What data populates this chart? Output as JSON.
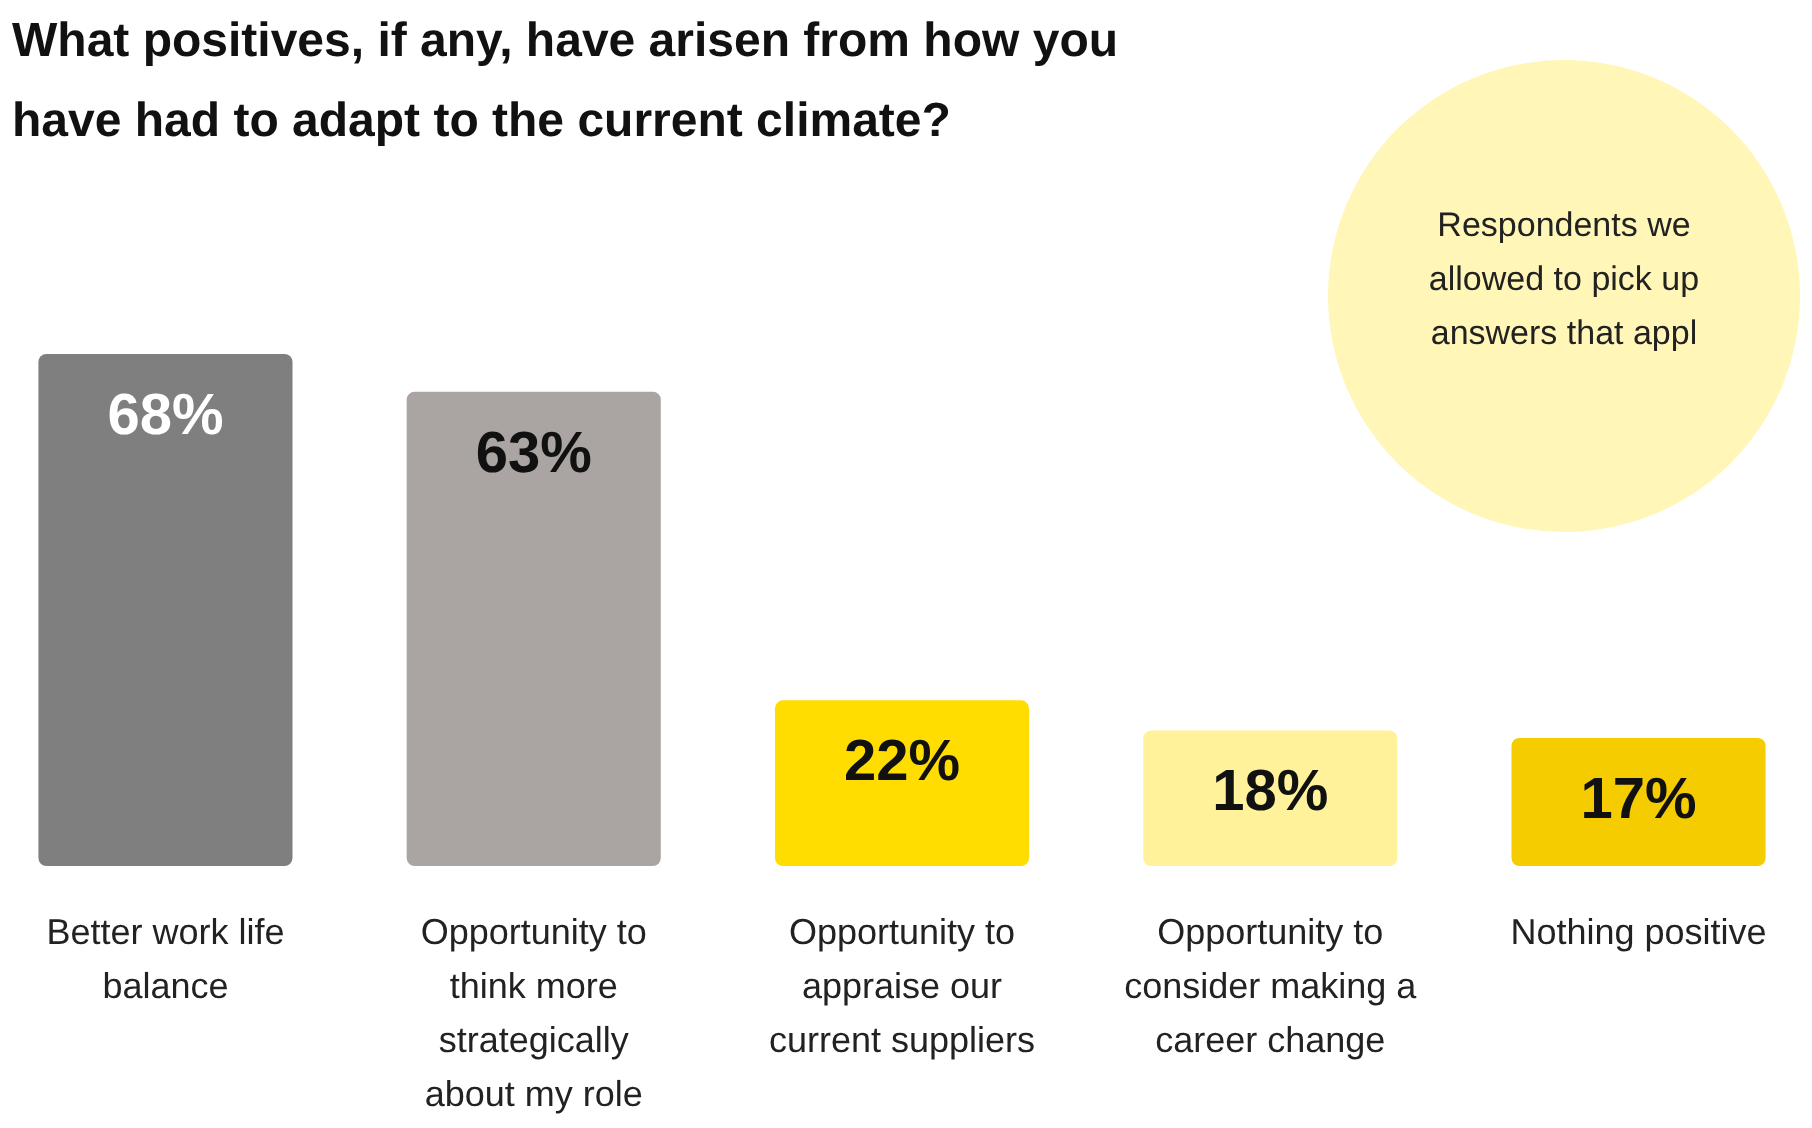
{
  "chart_data": {
    "type": "bar",
    "title": "What positives, if any, have arisen from how you have had to adapt to the current climate?",
    "categories": [
      "Better work life balance",
      "Opportunity to think more strategically about my role",
      "Opportunity to appraise our current suppliers",
      "Opportunity to consider making a career change",
      "Nothing positive"
    ],
    "values": [
      68,
      63,
      22,
      18,
      17
    ],
    "value_labels": [
      "68%",
      "63%",
      "22%",
      "18%",
      "17%"
    ],
    "colors": [
      "#7f7f7f",
      "#aaa5a2",
      "#ffdd00",
      "#fff29a",
      "#f5cc00"
    ],
    "annotations": [
      "Respondents we\nallowed to pick up\nanswers that appl"
    ]
  }
}
